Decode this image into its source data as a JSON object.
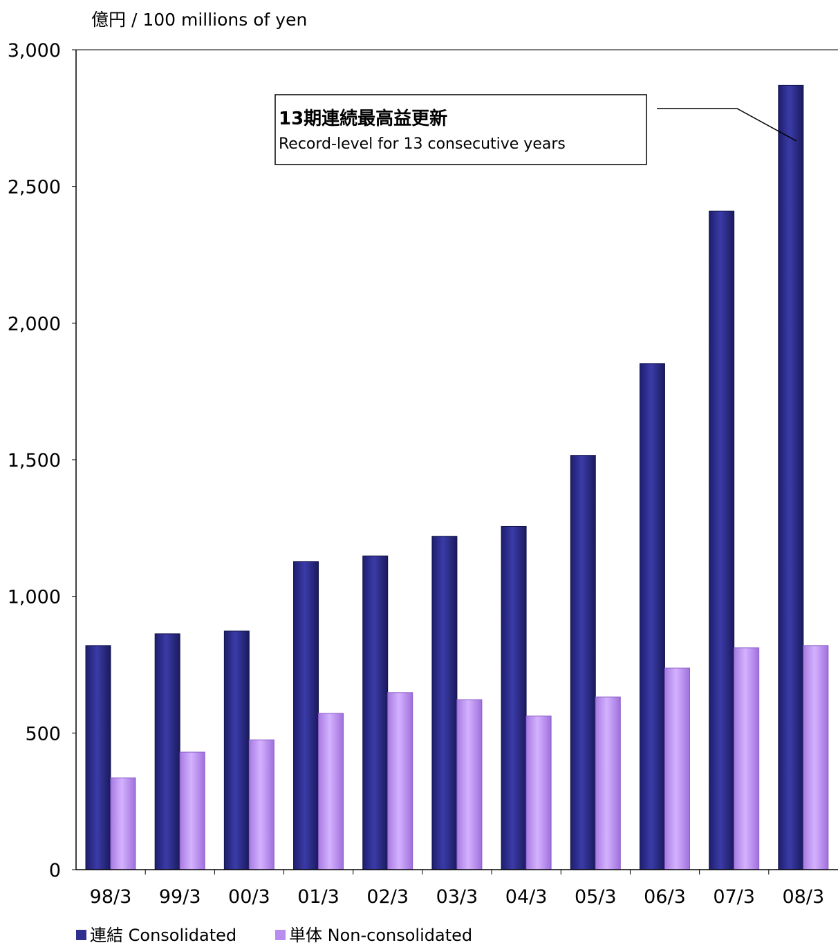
{
  "chart_data": {
    "type": "bar",
    "unit_label": "億円 / 100 millions of yen",
    "categories": [
      "98/3",
      "99/3",
      "00/3",
      "01/3",
      "02/3",
      "03/3",
      "04/3",
      "05/3",
      "06/3",
      "07/3",
      "08/3"
    ],
    "series": [
      {
        "name": "連結 Consolidated",
        "color": "#2f2f8f",
        "values": [
          820,
          863,
          873,
          1127,
          1148,
          1220,
          1256,
          1516,
          1852,
          2410,
          2870
        ]
      },
      {
        "name": "単体 Non-consolidated",
        "color": "#b98cf0",
        "values": [
          336,
          430,
          475,
          572,
          648,
          622,
          562,
          632,
          738,
          812,
          820
        ]
      }
    ],
    "ylim": [
      0,
      3000
    ],
    "yticks": [
      "0",
      "500",
      "1,000",
      "1,500",
      "2,000",
      "2,500",
      "3,000"
    ],
    "grid": false,
    "legend_position": "bottom-left",
    "annotation": {
      "line1": "13期連続最高益更新",
      "line2": "Record-level for 13 consecutive years",
      "target_category": "08/3"
    }
  }
}
